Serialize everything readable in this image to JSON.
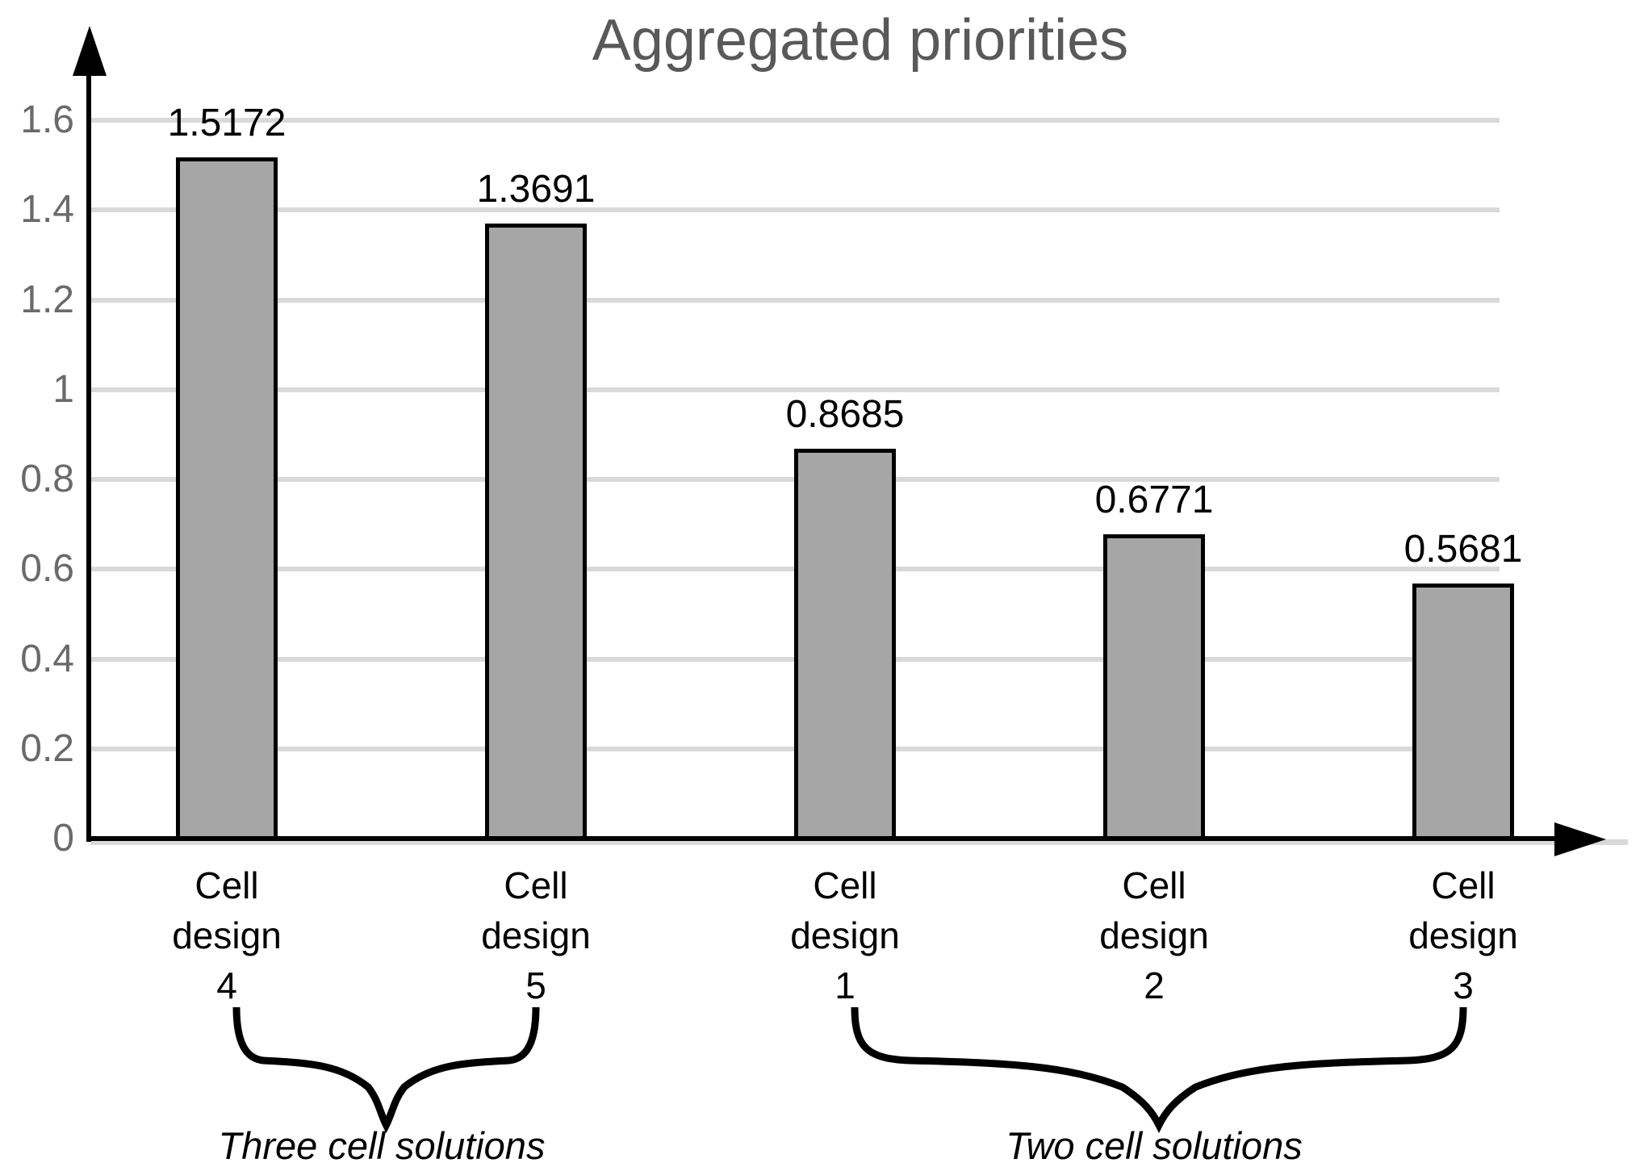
{
  "chart_data": {
    "type": "bar",
    "title": "Aggregated priorities",
    "categories": [
      "Cell design 4",
      "Cell design 5",
      "Cell design 1",
      "Cell design 2",
      "Cell design 3"
    ],
    "values": [
      1.5172,
      1.3691,
      0.8685,
      0.6771,
      0.5681
    ],
    "value_labels": [
      "1.5172",
      "1.3691",
      "0.8685",
      "0.6771",
      "0.5681"
    ],
    "xlabel": "",
    "ylabel": "",
    "ylim": [
      0,
      1.7
    ],
    "yticks": [
      0,
      0.2,
      0.4,
      0.6,
      0.8,
      1,
      1.2,
      1.4,
      1.6
    ],
    "ytick_labels": [
      "0",
      "0.2",
      "0.4",
      "0.6",
      "0.8",
      "1",
      "1.2",
      "1.4",
      "1.6"
    ],
    "grid": true,
    "legend": false,
    "bar_color": "#a6a6a6",
    "bar_border_color": "#000000",
    "gridline_color": "#d9d9d9",
    "axis_color": "#000000",
    "title_color": "#595959",
    "tick_color": "#6a6a6a",
    "groups": [
      {
        "label": "Three cell solutions",
        "from_category": 0,
        "to_category": 1
      },
      {
        "label": "Two cell solutions",
        "from_category": 2,
        "to_category": 4
      }
    ]
  }
}
